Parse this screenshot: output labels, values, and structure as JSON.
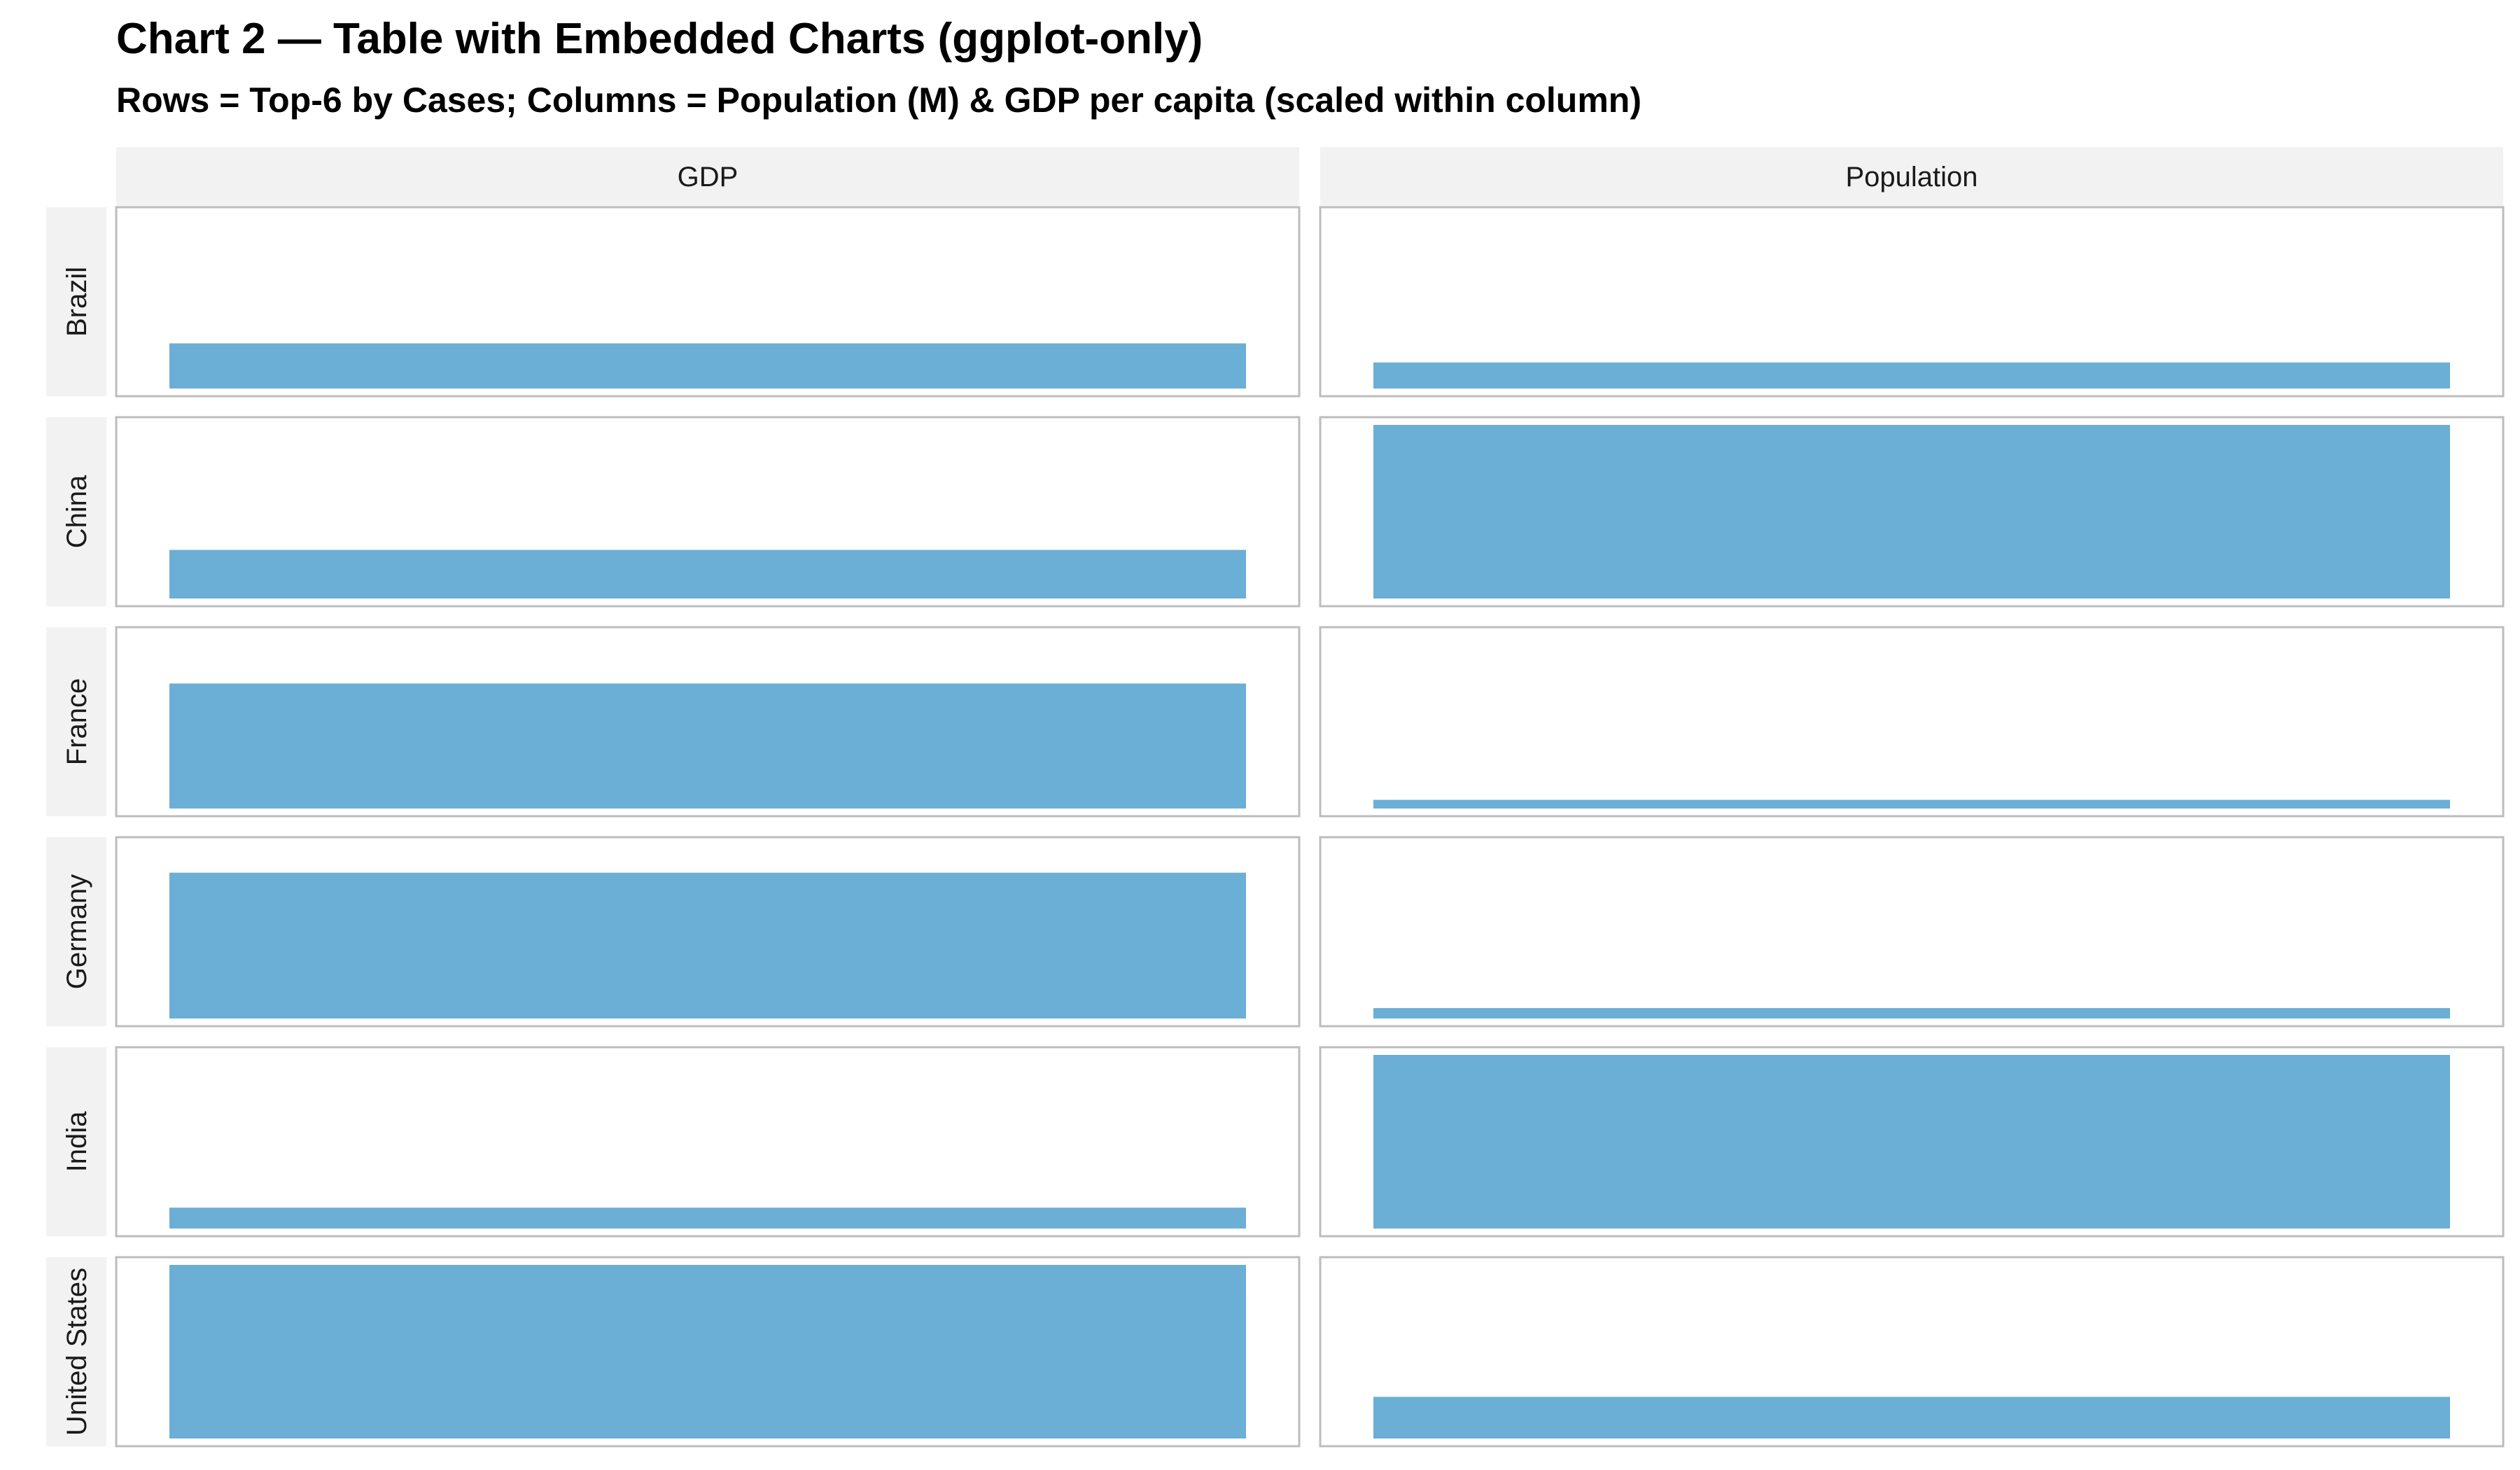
{
  "title": "Chart 2 — Table with Embedded Charts (ggplot-only)",
  "subtitle": "Rows = Top-6 by Cases; Columns = Population (M) & GDP per capita (scaled within column)",
  "colors": {
    "bar": "#6baed6",
    "strip_background": "#f2f2f2",
    "panel_border": "#bdbdbd",
    "background": "#ffffff"
  },
  "chart_data": {
    "type": "bar",
    "layout": "facet-grid",
    "columns": [
      "GDP",
      "Population"
    ],
    "rows": [
      "Brazil",
      "China",
      "France",
      "Germany",
      "India",
      "United States"
    ],
    "scale": "scaled within column, 0 to 1",
    "ylim": [
      0,
      1
    ],
    "series": [
      {
        "column": "GDP",
        "values": [
          0.26,
          0.28,
          0.72,
          0.84,
          0.12,
          1.0
        ]
      },
      {
        "column": "Population",
        "values": [
          0.15,
          1.0,
          0.05,
          0.06,
          1.0,
          0.24
        ]
      }
    ],
    "grid": false,
    "legend": "none"
  }
}
